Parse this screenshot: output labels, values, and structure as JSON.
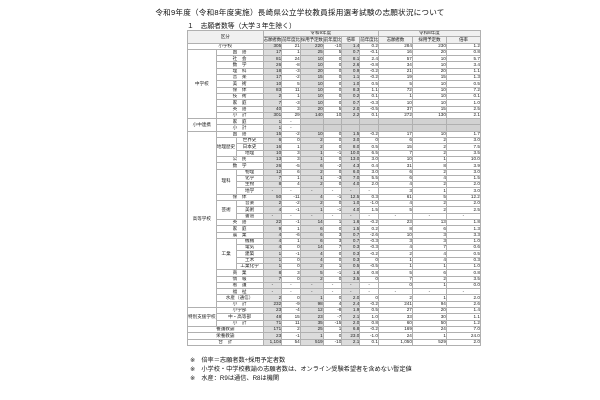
{
  "title": "令和9年度（令和8年度実施）長崎県公立学校教員採用選考試験の志願状況について",
  "section": "１　志願者数等（大学３年生除く）",
  "notes": [
    "※　倍率＝志願者数÷採用予定者数",
    "※　小学校・中学校教諭の志願者数は、オンライン受験希望者を含めない暫定値",
    "※　水産：R9は通信、R8は機関"
  ],
  "colors": {
    "shaded_column": "#dcdcdc",
    "muted_cell": "#d2d2d2",
    "grid_line": "#b0b0b0",
    "group_line": "#555555"
  },
  "table": {
    "header": {
      "kubun": "区分",
      "year_current": "令和9年度",
      "year_prev": "令和8年度",
      "cols_current": [
        "志願者数",
        "前年度比",
        "採用予定数",
        "前年度比",
        "倍率",
        "前年度比"
      ],
      "cols_prev": [
        "志願者数",
        "採用予定数",
        "倍率"
      ]
    },
    "rows": [
      {
        "sep": true,
        "labels": [
          {
            "t": "小学校",
            "cs": 3
          }
        ],
        "v": [
          "305",
          "21",
          "220",
          "-10",
          "1.4",
          "0.2",
          "284",
          "230",
          "1.2"
        ]
      },
      {
        "sep": true,
        "labels": [
          {
            "t": "中学校",
            "rs": 11,
            "g": 1
          },
          {
            "t": "国　語",
            "cs": 2
          }
        ],
        "v": [
          "17",
          "1",
          "25",
          "5",
          "0.7",
          "-0.1",
          "16",
          "20",
          "0.8"
        ]
      },
      {
        "labels": [
          {
            "t": "社　会",
            "cs": 2
          }
        ],
        "v": [
          "81",
          "24",
          "10",
          "0",
          "8.1",
          "2.4",
          "57",
          "10",
          "5.7"
        ]
      },
      {
        "labels": [
          {
            "t": "数　学",
            "cs": 2
          }
        ],
        "v": [
          "26",
          "-8",
          "10",
          "0",
          "2.6",
          "-0.8",
          "34",
          "10",
          "3.4"
        ]
      },
      {
        "labels": [
          {
            "t": "理　科",
            "cs": 2
          }
        ],
        "v": [
          "18",
          "-3",
          "20",
          "0",
          "0.9",
          "-0.2",
          "21",
          "20",
          "1.1"
        ]
      },
      {
        "labels": [
          {
            "t": "音　楽",
            "cs": 2
          }
        ],
        "v": [
          "17",
          "-2",
          "15",
          "0",
          "1.1",
          "-0.2",
          "19",
          "15",
          "1.3"
        ]
      },
      {
        "labels": [
          {
            "t": "美　術",
            "cs": 2
          }
        ],
        "v": [
          "10",
          "5",
          "10",
          "0",
          "1.0",
          "0.5",
          "5",
          "10",
          "0.5"
        ]
      },
      {
        "labels": [
          {
            "t": "保　体",
            "cs": 2
          }
        ],
        "v": [
          "83",
          "11",
          "10",
          "0",
          "8.3",
          "1.1",
          "72",
          "10",
          "7.2"
        ]
      },
      {
        "labels": [
          {
            "t": "技　術",
            "cs": 2
          }
        ],
        "v": [
          "2",
          "1",
          "10",
          "0",
          "0.2",
          "0.1",
          "1",
          "10",
          "0.1"
        ]
      },
      {
        "labels": [
          {
            "t": "家　庭",
            "cs": 2
          }
        ],
        "v": [
          "7",
          "-3",
          "10",
          "0",
          "0.7",
          "-0.3",
          "10",
          "10",
          "1.0"
        ]
      },
      {
        "labels": [
          {
            "t": "英　語",
            "cs": 2
          }
        ],
        "v": [
          "40",
          "3",
          "20",
          "5",
          "2.0",
          "-0.5",
          "37",
          "15",
          "2.5"
        ]
      },
      {
        "sep": true,
        "labels": [
          {
            "t": "小　計",
            "cs": 2
          }
        ],
        "v": [
          "301",
          "29",
          "140",
          "10",
          "2.2",
          "0.1",
          "272",
          "130",
          "2.1"
        ]
      },
      {
        "sep": true,
        "labels": [
          {
            "t": "小中連携",
            "rs": 2,
            "g": 1
          },
          {
            "t": "家　庭",
            "cs": 2
          }
        ],
        "v": [
          "1",
          "-",
          "",
          "",
          "",
          "",
          "",
          "",
          ""
        ],
        "mutedFrom": 2
      },
      {
        "labels": [
          {
            "t": "小　計",
            "cs": 2
          }
        ],
        "v": [
          "1",
          "-",
          "",
          "",
          "",
          "",
          "",
          "",
          ""
        ],
        "mutedFrom": 2
      },
      {
        "sep": true,
        "labels": [
          {
            "t": "高等学校",
            "rs": 28,
            "g": 1
          },
          {
            "t": "国　語",
            "cs": 2
          }
        ],
        "v": [
          "15",
          "-2",
          "10",
          "0",
          "1.5",
          "-0.2",
          "17",
          "10",
          "1.7"
        ]
      },
      {
        "labels": [
          {
            "t": "地理歴史",
            "rs": 3,
            "g": 1
          },
          {
            "t": "世界史"
          }
        ],
        "v": [
          "6",
          "0",
          "2",
          "0",
          "3.0",
          "0",
          "6",
          "2",
          "3.0"
        ]
      },
      {
        "labels": [
          {
            "t": "日本史"
          }
        ],
        "v": [
          "16",
          "1",
          "2",
          "0",
          "8.0",
          "0.5",
          "15",
          "2",
          "7.5"
        ]
      },
      {
        "labels": [
          {
            "t": "地理"
          }
        ],
        "v": [
          "10",
          "3",
          "1",
          "-1",
          "10.0",
          "6.5",
          "7",
          "2",
          "3.5"
        ]
      },
      {
        "labels": [
          {
            "t": "公　民",
            "cs": 2
          }
        ],
        "v": [
          "13",
          "3",
          "1",
          "0",
          "13.0",
          "3.0",
          "10",
          "1",
          "10.0"
        ]
      },
      {
        "labels": [
          {
            "t": "数　学",
            "cs": 2
          }
        ],
        "v": [
          "26",
          "-5",
          "6",
          "-2",
          "4.3",
          "0.4",
          "31",
          "8",
          "3.9"
        ]
      },
      {
        "labels": [
          {
            "t": "理科",
            "rs": 4,
            "g": 1
          },
          {
            "t": "物理"
          }
        ],
        "v": [
          "12",
          "6",
          "2",
          "0",
          "6.0",
          "3.0",
          "6",
          "2",
          "3.0"
        ]
      },
      {
        "labels": [
          {
            "t": "化学"
          }
        ],
        "v": [
          "7",
          "1",
          "1",
          "-3",
          "7.0",
          "5.5",
          "6",
          "4",
          "1.5"
        ]
      },
      {
        "labels": [
          {
            "t": "生物"
          }
        ],
        "v": [
          "8",
          "4",
          "2",
          "0",
          "4.0",
          "2.0",
          "4",
          "2",
          "2.0"
        ]
      },
      {
        "labels": [
          {
            "t": "地学"
          }
        ],
        "v": [
          "-",
          "-",
          "-",
          "-",
          "-",
          "-",
          "3",
          "1",
          "3.0"
        ]
      },
      {
        "labels": [
          {
            "t": "保　体",
            "cs": 2
          }
        ],
        "v": [
          "50",
          "-11",
          "4",
          "-1",
          "12.5",
          "0.3",
          "61",
          "5",
          "12.2"
        ]
      },
      {
        "labels": [
          {
            "t": "芸術",
            "rs": 3,
            "g": 1
          },
          {
            "t": "音楽"
          }
        ],
        "v": [
          "2",
          "-2",
          "2",
          "0",
          "1.0",
          "-1.0",
          "4",
          "2",
          "2.0"
        ]
      },
      {
        "labels": [
          {
            "t": "美術"
          }
        ],
        "v": [
          "4",
          "-1",
          "1",
          "-1",
          "4.0",
          "1.5",
          "5",
          "2",
          "2.5"
        ]
      },
      {
        "labels": [
          {
            "t": "書道"
          }
        ],
        "v": [
          "-",
          "-",
          "-",
          "-",
          "-",
          "-",
          "-",
          "-",
          "-"
        ]
      },
      {
        "labels": [
          {
            "t": "英　語",
            "cs": 2
          }
        ],
        "v": [
          "22",
          "-1",
          "14",
          "1",
          "1.6",
          "-0.2",
          "23",
          "13",
          "1.8"
        ]
      },
      {
        "labels": [
          {
            "t": "家　庭",
            "cs": 2
          }
        ],
        "v": [
          "9",
          "1",
          "6",
          "0",
          "1.5",
          "0.2",
          "8",
          "6",
          "1.3"
        ]
      },
      {
        "labels": [
          {
            "t": "農　業",
            "cs": 2
          }
        ],
        "v": [
          "4",
          "-6",
          "6",
          "3",
          "0.7",
          "-2.6",
          "10",
          "3",
          "3.3"
        ]
      },
      {
        "labels": [
          {
            "t": "工業",
            "rs": 5,
            "g": 1
          },
          {
            "t": "機械"
          }
        ],
        "v": [
          "4",
          "1",
          "6",
          "3",
          "0.7",
          "-0.3",
          "3",
          "3",
          "1.0"
        ]
      },
      {
        "labels": [
          {
            "t": "電気"
          }
        ],
        "v": [
          "4",
          "0",
          "14",
          "7",
          "0.3",
          "-0.3",
          "4",
          "7",
          "0.6"
        ]
      },
      {
        "labels": [
          {
            "t": "建築"
          }
        ],
        "v": [
          "1",
          "-1",
          "4",
          "0",
          "0.3",
          "-0.2",
          "2",
          "4",
          "0.5"
        ]
      },
      {
        "labels": [
          {
            "t": "土木"
          }
        ],
        "v": [
          "1",
          "0",
          "4",
          "0",
          "0.3",
          "0",
          "1",
          "4",
          "0.3"
        ]
      },
      {
        "labels": [
          {
            "t": "工業化学"
          }
        ],
        "v": [
          "1",
          "0",
          "2",
          "1",
          "0.5",
          "-0.5",
          "1",
          "1",
          "1.0"
        ]
      },
      {
        "labels": [
          {
            "t": "商　業",
            "cs": 2
          }
        ],
        "v": [
          "8",
          "3",
          "5",
          "-1",
          "1.6",
          "0.8",
          "5",
          "6",
          "0.8"
        ]
      },
      {
        "labels": [
          {
            "t": "情　報",
            "cs": 2
          }
        ],
        "v": [
          "7",
          "0",
          "2",
          "0",
          "3.5",
          "0",
          "7",
          "2",
          "3.5"
        ]
      },
      {
        "labels": [
          {
            "t": "看　護",
            "cs": 2
          }
        ],
        "v": [
          "-",
          "-",
          "-",
          "-",
          "-",
          "-",
          "0",
          "1",
          "0.0"
        ]
      },
      {
        "labels": [
          {
            "t": "福　祉",
            "cs": 2
          }
        ],
        "v": [
          "-",
          "-",
          "-",
          "-",
          "-",
          "-",
          "-",
          "-",
          "-"
        ]
      },
      {
        "labels": [
          {
            "t": "水産（通信）",
            "cs": 2
          }
        ],
        "v": [
          "2",
          "0",
          "1",
          "0",
          "2.0",
          "0",
          "2",
          "1",
          "2.0"
        ]
      },
      {
        "sep": true,
        "labels": [
          {
            "t": "小　計",
            "cs": 2
          }
        ],
        "v": [
          "232",
          "-9",
          "98",
          "4",
          "2.4",
          "-0.2",
          "241",
          "94",
          "2.6"
        ]
      },
      {
        "sep": true,
        "labels": [
          {
            "t": "特別支援学校",
            "rs": 3,
            "g": 1
          },
          {
            "t": "小学部",
            "cs": 2
          }
        ],
        "v": [
          "23",
          "-4",
          "12",
          "-8",
          "1.9",
          "0.5",
          "27",
          "20",
          "1.4"
        ]
      },
      {
        "labels": [
          {
            "t": "中・高等部",
            "cs": 2
          }
        ],
        "v": [
          "48",
          "15",
          "23",
          "-7",
          "2.1",
          "1.0",
          "33",
          "30",
          "1.1"
        ]
      },
      {
        "sep": true,
        "labels": [
          {
            "t": "小　計",
            "cs": 2
          }
        ],
        "v": [
          "71",
          "11",
          "35",
          "-15",
          "2.0",
          "0.8",
          "60",
          "50",
          "1.2"
        ]
      },
      {
        "sep": true,
        "labels": [
          {
            "t": "養護教諭",
            "cs": 3
          }
        ],
        "v": [
          "171",
          "2",
          "25",
          "1",
          "6.8",
          "-0.2",
          "169",
          "24",
          "7.0"
        ]
      },
      {
        "sep": true,
        "labels": [
          {
            "t": "栄養教諭",
            "cs": 3
          }
        ],
        "v": [
          "23",
          "-1",
          "1",
          "0",
          "23.0",
          "-1.0",
          "24",
          "1",
          "24.0"
        ]
      },
      {
        "sep": true,
        "labels": [
          {
            "t": "合　計",
            "cs": 3
          }
        ],
        "v": [
          "1,104",
          "54",
          "519",
          "-10",
          "2.1",
          "0.1",
          "1,050",
          "529",
          "2.0"
        ]
      }
    ]
  }
}
